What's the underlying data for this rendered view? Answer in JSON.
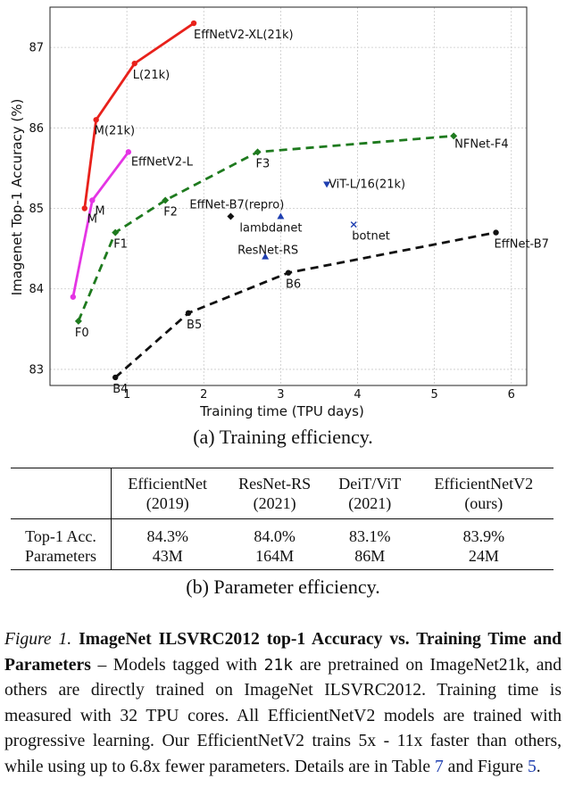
{
  "chart_data": {
    "type": "line",
    "xlabel": "Training time (TPU days)",
    "ylabel": "Imagenet Top-1 Accuracy (%)",
    "xlim": [
      0,
      6.2
    ],
    "ylim": [
      82.8,
      87.5
    ],
    "xticks": [
      1,
      2,
      3,
      4,
      5,
      6
    ],
    "yticks": [
      83,
      84,
      85,
      86,
      87
    ],
    "grid": true,
    "series": [
      {
        "color": "#e8211b",
        "dash": false,
        "marker": "circle",
        "points": [
          {
            "x": 0.45,
            "y": 85.0,
            "label": "M"
          },
          {
            "x": 0.6,
            "y": 86.1,
            "label": "M(21k)"
          },
          {
            "x": 1.1,
            "y": 86.8,
            "label": "L(21k)"
          },
          {
            "x": 1.87,
            "y": 87.3,
            "label": "EffNetV2-XL(21k)"
          }
        ]
      },
      {
        "color": "#e435e4",
        "dash": false,
        "marker": "circle",
        "points": [
          {
            "x": 0.3,
            "y": 83.9,
            "label": ""
          },
          {
            "x": 0.55,
            "y": 85.1,
            "label": "M"
          },
          {
            "x": 1.02,
            "y": 85.7,
            "label": "EffNetV2-L"
          }
        ]
      },
      {
        "color": "#1e7a1e",
        "dash": true,
        "marker": "diamond",
        "points": [
          {
            "x": 0.37,
            "y": 83.6,
            "label": "F0"
          },
          {
            "x": 0.85,
            "y": 84.7,
            "label": "F1"
          },
          {
            "x": 1.5,
            "y": 85.1,
            "label": "F2"
          },
          {
            "x": 2.7,
            "y": 85.7,
            "label": "F3"
          },
          {
            "x": 5.25,
            "y": 85.9,
            "label": "NFNet-F4"
          }
        ]
      },
      {
        "color": "#111111",
        "dash": true,
        "marker": "circle",
        "points": [
          {
            "x": 0.85,
            "y": 82.9,
            "label": "B4"
          },
          {
            "x": 1.8,
            "y": 83.7,
            "label": "B5"
          },
          {
            "x": 3.1,
            "y": 84.2,
            "label": "B6"
          },
          {
            "x": 5.8,
            "y": 84.7,
            "label": "EffNet-B7"
          }
        ]
      }
    ],
    "singles": [
      {
        "x": 2.35,
        "y": 84.9,
        "label": "EffNet-B7(repro)",
        "color": "#111111",
        "marker": "diamond"
      },
      {
        "x": 3.0,
        "y": 84.9,
        "label": "lambdanet",
        "color": "#1f3fb0",
        "marker": "triangle"
      },
      {
        "x": 2.8,
        "y": 84.4,
        "label": "ResNet-RS",
        "color": "#1f3fb0",
        "marker": "triangle"
      },
      {
        "x": 3.6,
        "y": 85.3,
        "label": "ViT-L/16(21k)",
        "color": "#1f3fb0",
        "marker": "triangle-down"
      },
      {
        "x": 3.95,
        "y": 84.8,
        "label": "botnet",
        "color": "#1f3fb0",
        "marker": "x"
      }
    ]
  },
  "caption_a": "(a) Training efficiency.",
  "table": {
    "headers": [
      {
        "line1": "",
        "line2": ""
      },
      {
        "line1": "EfficientNet",
        "line2": "(2019)"
      },
      {
        "line1": "ResNet-RS",
        "line2": "(2021)"
      },
      {
        "line1": "DeiT/ViT",
        "line2": "(2021)"
      },
      {
        "line1": "EfficientNetV2",
        "line2": "(ours)"
      }
    ],
    "rows": [
      {
        "label": "Top-1 Acc.",
        "values": [
          "84.3%",
          "84.0%",
          "83.1%",
          "83.9%"
        ]
      },
      {
        "label": "Parameters",
        "values": [
          "43M",
          "164M",
          "86M",
          "24M"
        ]
      }
    ]
  },
  "caption_b": "(b) Parameter efficiency.",
  "figure_caption": {
    "label": "Figure 1.",
    "title": "ImageNet ILSVRC2012 top-1 Accuracy vs. Training Time and Parameters",
    "text1": " – Models tagged with ",
    "code": "21k",
    "text2": " are pretrained on ImageNet21k, and others are directly trained on ImageNet ILSVRC2012. Training time is measured with 32 TPU cores. All EfficientNetV2 models are trained with progressive learning. Our EfficientNetV2 trains 5x - 11x faster than others, while using up to 6.8x fewer parameters. Details are in Table ",
    "ref_table": "7",
    "text3": " and Figure ",
    "ref_figure": "5",
    "text4": "."
  }
}
